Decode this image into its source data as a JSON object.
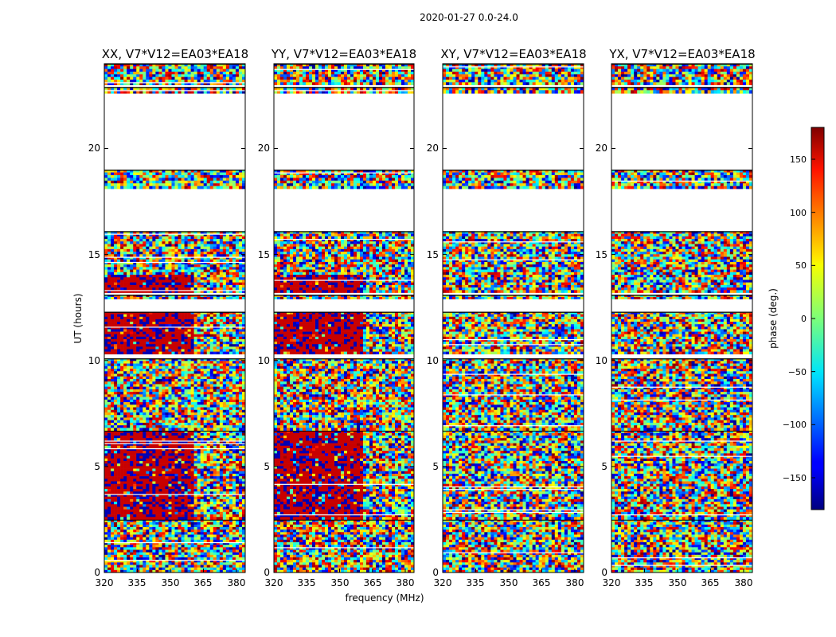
{
  "figure": {
    "suptitle": "2020-01-27 0.0-24.0"
  },
  "chart_data": [
    {
      "type": "heatmap",
      "title": "XX, V7*V12=EA03*EA18",
      "xlabel": "",
      "ylabel": "UT (hours)",
      "x_ticks": [
        "320",
        "335",
        "350",
        "365",
        "380"
      ],
      "y_ticks": [
        "0",
        "5",
        "10",
        "15",
        "20"
      ],
      "xlim": [
        320,
        384
      ],
      "ylim": [
        0,
        24
      ],
      "valid_ut_ranges": [
        [
          0.0,
          2.5
        ],
        [
          2.5,
          6.7
        ],
        [
          6.7,
          10.1
        ],
        [
          10.3,
          12.3
        ],
        [
          12.9,
          13.1
        ],
        [
          13.2,
          16.1
        ],
        [
          18.1,
          19.0
        ],
        [
          22.6,
          22.9
        ],
        [
          23.0,
          24.0
        ]
      ],
      "phase_locked_region": {
        "ut_ranges": [
          [
            2.5,
            6.7
          ],
          [
            10.3,
            12.3
          ],
          [
            13.2,
            14.0
          ]
        ],
        "max_freq_mhz": 361
      }
    },
    {
      "type": "heatmap",
      "title": "YY, V7*V12=EA03*EA18",
      "xlabel": "frequency (MHz)",
      "ylabel": "",
      "x_ticks": [
        "320",
        "335",
        "350",
        "365",
        "380"
      ],
      "y_ticks": [
        "0",
        "5",
        "10",
        "15",
        "20"
      ],
      "xlim": [
        320,
        384
      ],
      "ylim": [
        0,
        24
      ],
      "valid_ut_ranges": [
        [
          0.0,
          2.5
        ],
        [
          2.5,
          6.7
        ],
        [
          6.7,
          10.1
        ],
        [
          10.3,
          12.3
        ],
        [
          12.9,
          13.1
        ],
        [
          13.2,
          16.1
        ],
        [
          18.1,
          19.0
        ],
        [
          22.6,
          22.9
        ],
        [
          23.0,
          24.0
        ]
      ],
      "phase_locked_region": {
        "ut_ranges": [
          [
            2.5,
            6.7
          ],
          [
            10.3,
            12.3
          ],
          [
            13.2,
            14.0
          ]
        ],
        "max_freq_mhz": 361
      }
    },
    {
      "type": "heatmap",
      "title": "XY, V7*V12=EA03*EA18",
      "xlabel": "",
      "ylabel": "",
      "x_ticks": [
        "320",
        "335",
        "350",
        "365",
        "380"
      ],
      "y_ticks": [
        "0",
        "5",
        "10",
        "15",
        "20"
      ],
      "xlim": [
        320,
        384
      ],
      "ylim": [
        0,
        24
      ],
      "valid_ut_ranges": [
        [
          0.0,
          2.5
        ],
        [
          2.5,
          6.7
        ],
        [
          6.7,
          10.1
        ],
        [
          10.3,
          12.3
        ],
        [
          12.9,
          13.1
        ],
        [
          13.2,
          16.1
        ],
        [
          18.1,
          19.0
        ],
        [
          22.6,
          22.9
        ],
        [
          23.0,
          24.0
        ]
      ],
      "phase_locked_region": null
    },
    {
      "type": "heatmap",
      "title": "YX, V7*V12=EA03*EA18",
      "xlabel": "",
      "ylabel": "",
      "x_ticks": [
        "320",
        "335",
        "350",
        "365",
        "380"
      ],
      "y_ticks": [
        "0",
        "5",
        "10",
        "15",
        "20"
      ],
      "xlim": [
        320,
        384
      ],
      "ylim": [
        0,
        24
      ],
      "valid_ut_ranges": [
        [
          0.0,
          2.5
        ],
        [
          2.5,
          6.7
        ],
        [
          6.7,
          10.1
        ],
        [
          10.3,
          12.3
        ],
        [
          12.9,
          13.1
        ],
        [
          13.2,
          16.1
        ],
        [
          18.1,
          19.0
        ],
        [
          22.6,
          22.9
        ],
        [
          23.0,
          24.0
        ]
      ],
      "phase_locked_region": null
    }
  ],
  "colorbar": {
    "label": "phase (deg.)",
    "range": [
      -180,
      180
    ],
    "ticks": [
      "150",
      "100",
      "50",
      "0",
      "−50",
      "−100",
      "−150"
    ],
    "tick_values": [
      150,
      100,
      50,
      0,
      -50,
      -100,
      -150
    ],
    "colormap": "jet"
  },
  "colors": {
    "locked_red": "#c80000",
    "locked_blue": "#0000b4",
    "axis": "#000000",
    "background": "#ffffff"
  }
}
